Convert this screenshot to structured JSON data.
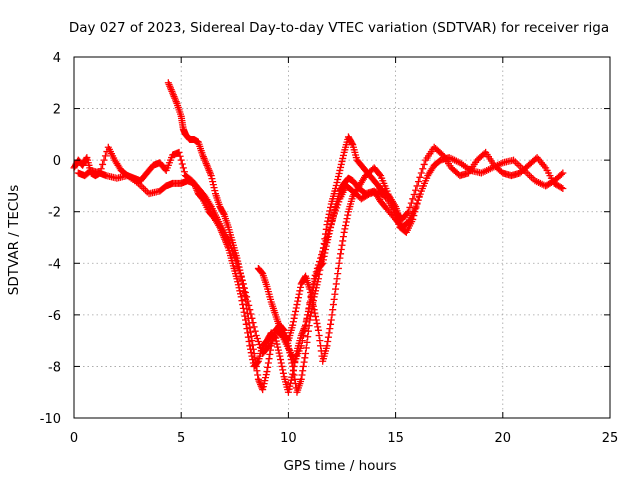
{
  "chart_data": {
    "type": "scatter",
    "title": "Day 027 of 2023, Sidereal Day-to-day VTEC variation (SDTVAR) for receiver riga",
    "xlabel": "GPS time / hours",
    "ylabel": "SDTVAR / TECUs",
    "xlim": [
      0,
      25
    ],
    "ylim": [
      -10,
      4
    ],
    "xticks": [
      "0",
      "5",
      "10",
      "15",
      "20",
      "25"
    ],
    "yticks": [
      "-10",
      "-8",
      "-6",
      "-4",
      "-2",
      "0",
      "2",
      "4"
    ],
    "grid": true,
    "marker": "plus",
    "color": "#ff0000",
    "series": [
      {
        "points": [
          [
            0.0,
            -0.3
          ],
          [
            0.2,
            0.0
          ],
          [
            0.4,
            -0.2
          ],
          [
            0.6,
            0.1
          ],
          [
            0.8,
            -0.5
          ],
          [
            1.0,
            -0.6
          ],
          [
            1.2,
            -0.5
          ],
          [
            1.5,
            -0.6
          ],
          [
            2.0,
            -0.7
          ],
          [
            2.5,
            -0.6
          ],
          [
            3.0,
            -0.9
          ],
          [
            3.5,
            -1.3
          ],
          [
            4.0,
            -1.2
          ],
          [
            4.3,
            -1.0
          ],
          [
            4.6,
            -0.9
          ],
          [
            5.0,
            -0.9
          ],
          [
            5.3,
            -0.8
          ],
          [
            5.6,
            -0.9
          ],
          [
            5.8,
            -1.3
          ],
          [
            6.0,
            -1.5
          ],
          [
            6.3,
            -2.0
          ],
          [
            6.5,
            -2.2
          ],
          [
            6.8,
            -2.6
          ],
          [
            7.0,
            -3.0
          ],
          [
            7.2,
            -3.4
          ],
          [
            7.4,
            -4.0
          ],
          [
            7.6,
            -4.6
          ],
          [
            7.8,
            -5.3
          ],
          [
            8.0,
            -6.2
          ],
          [
            8.2,
            -7.2
          ],
          [
            8.4,
            -8.0
          ],
          [
            8.6,
            -7.8
          ],
          [
            8.8,
            -7.2
          ],
          [
            9.0,
            -7.0
          ],
          [
            9.2,
            -6.7
          ],
          [
            9.4,
            -6.9
          ],
          [
            9.6,
            -7.6
          ],
          [
            9.8,
            -8.4
          ],
          [
            10.0,
            -9.0
          ],
          [
            10.2,
            -8.3
          ],
          [
            10.4,
            -7.4
          ],
          [
            10.6,
            -6.8
          ],
          [
            10.8,
            -6.4
          ],
          [
            11.0,
            -5.6
          ],
          [
            11.2,
            -4.8
          ],
          [
            11.4,
            -4.2
          ],
          [
            11.6,
            -4.0
          ],
          [
            11.8,
            -3.2
          ],
          [
            12.0,
            -2.5
          ],
          [
            12.2,
            -1.8
          ],
          [
            12.4,
            -1.2
          ],
          [
            12.6,
            -0.9
          ],
          [
            12.8,
            -0.7
          ],
          [
            13.0,
            -0.8
          ],
          [
            13.3,
            -1.1
          ],
          [
            13.6,
            -1.3
          ],
          [
            14.0,
            -1.2
          ],
          [
            14.3,
            -1.6
          ],
          [
            14.6,
            -1.9
          ],
          [
            15.0,
            -2.3
          ],
          [
            15.3,
            -2.6
          ],
          [
            15.6,
            -2.4
          ],
          [
            15.9,
            -1.9
          ],
          [
            16.2,
            -1.2
          ],
          [
            16.5,
            -0.6
          ],
          [
            16.8,
            -0.2
          ],
          [
            17.1,
            0.0
          ],
          [
            17.5,
            0.1
          ],
          [
            18.0,
            -0.1
          ],
          [
            18.5,
            -0.4
          ],
          [
            19.0,
            -0.5
          ],
          [
            19.5,
            -0.3
          ],
          [
            20.0,
            -0.1
          ],
          [
            20.5,
            0.0
          ],
          [
            21.0,
            -0.4
          ],
          [
            21.5,
            -0.8
          ],
          [
            22.0,
            -1.0
          ],
          [
            22.4,
            -0.8
          ],
          [
            22.8,
            -0.5
          ]
        ]
      },
      {
        "points": [
          [
            0.2,
            -0.5
          ],
          [
            0.5,
            -0.6
          ],
          [
            0.8,
            -0.4
          ],
          [
            1.2,
            -0.5
          ],
          [
            1.6,
            0.5
          ],
          [
            1.9,
            0.0
          ],
          [
            2.2,
            -0.4
          ],
          [
            2.5,
            -0.6
          ],
          [
            2.8,
            -0.7
          ],
          [
            3.1,
            -0.8
          ],
          [
            3.4,
            -0.5
          ],
          [
            3.7,
            -0.2
          ],
          [
            4.0,
            -0.1
          ],
          [
            4.3,
            -0.4
          ],
          [
            4.6,
            0.2
          ],
          [
            4.9,
            0.3
          ],
          [
            5.2,
            -0.6
          ],
          [
            5.5,
            -0.8
          ],
          [
            5.8,
            -1.1
          ],
          [
            6.1,
            -1.4
          ],
          [
            6.4,
            -1.8
          ],
          [
            6.7,
            -2.3
          ],
          [
            7.0,
            -2.8
          ],
          [
            7.3,
            -3.3
          ],
          [
            7.6,
            -4.0
          ],
          [
            7.9,
            -4.8
          ],
          [
            8.2,
            -5.8
          ],
          [
            8.5,
            -6.8
          ],
          [
            8.8,
            -7.5
          ],
          [
            9.1,
            -7.2
          ],
          [
            9.4,
            -6.6
          ],
          [
            9.7,
            -6.8
          ],
          [
            10.0,
            -7.3
          ],
          [
            10.3,
            -7.8
          ],
          [
            10.6,
            -7.2
          ],
          [
            10.9,
            -6.0
          ],
          [
            11.2,
            -4.6
          ],
          [
            11.5,
            -3.8
          ],
          [
            11.8,
            -3.0
          ],
          [
            12.1,
            -2.2
          ],
          [
            12.4,
            -1.5
          ],
          [
            12.7,
            -1.0
          ],
          [
            13.0,
            -1.2
          ],
          [
            13.4,
            -1.5
          ],
          [
            13.8,
            -1.3
          ],
          [
            14.2,
            -1.2
          ],
          [
            14.6,
            -1.5
          ],
          [
            15.0,
            -2.0
          ],
          [
            15.3,
            -2.3
          ],
          [
            15.6,
            -2.0
          ],
          [
            16.0,
            -1.0
          ],
          [
            16.4,
            0.0
          ],
          [
            16.8,
            0.5
          ],
          [
            17.2,
            0.2
          ],
          [
            17.6,
            -0.3
          ],
          [
            18.0,
            -0.6
          ],
          [
            18.4,
            -0.5
          ],
          [
            18.8,
            0.0
          ],
          [
            19.2,
            0.3
          ],
          [
            19.6,
            -0.2
          ],
          [
            20.0,
            -0.5
          ],
          [
            20.4,
            -0.6
          ],
          [
            20.8,
            -0.5
          ],
          [
            21.2,
            -0.2
          ],
          [
            21.6,
            0.1
          ],
          [
            22.0,
            -0.3
          ],
          [
            22.4,
            -0.9
          ],
          [
            22.8,
            -1.1
          ]
        ]
      },
      {
        "points": [
          [
            4.4,
            3.0
          ],
          [
            4.6,
            2.6
          ],
          [
            4.8,
            2.2
          ],
          [
            5.0,
            1.7
          ],
          [
            5.1,
            1.2
          ],
          [
            5.2,
            1.0
          ],
          [
            5.4,
            0.8
          ],
          [
            5.6,
            0.8
          ],
          [
            5.8,
            0.7
          ],
          [
            6.0,
            0.2
          ],
          [
            6.2,
            -0.2
          ],
          [
            6.4,
            -0.6
          ],
          [
            6.6,
            -1.3
          ],
          [
            6.8,
            -1.8
          ],
          [
            7.0,
            -2.1
          ],
          [
            7.2,
            -2.6
          ],
          [
            7.4,
            -3.2
          ],
          [
            7.6,
            -3.8
          ],
          [
            7.8,
            -4.5
          ],
          [
            8.0,
            -5.4
          ],
          [
            8.2,
            -6.5
          ],
          [
            8.4,
            -7.5
          ],
          [
            8.6,
            -8.5
          ],
          [
            8.8,
            -8.9
          ],
          [
            9.0,
            -8.2
          ],
          [
            9.2,
            -7.2
          ],
          [
            9.4,
            -6.6
          ],
          [
            9.6,
            -6.4
          ],
          [
            9.8,
            -6.6
          ],
          [
            10.0,
            -7.2
          ],
          [
            10.2,
            -8.0
          ],
          [
            10.4,
            -9.0
          ],
          [
            10.6,
            -8.5
          ],
          [
            10.8,
            -7.5
          ],
          [
            11.0,
            -6.2
          ],
          [
            11.2,
            -5.3
          ],
          [
            11.4,
            -4.6
          ],
          [
            11.6,
            -3.6
          ],
          [
            11.8,
            -2.5
          ],
          [
            12.0,
            -1.7
          ],
          [
            12.2,
            -1.1
          ],
          [
            12.4,
            -0.4
          ],
          [
            12.6,
            0.3
          ],
          [
            12.8,
            0.9
          ],
          [
            13.0,
            0.6
          ],
          [
            13.2,
            0.0
          ],
          [
            13.5,
            -0.3
          ],
          [
            13.8,
            -0.6
          ],
          [
            14.1,
            -0.9
          ],
          [
            14.4,
            -1.2
          ],
          [
            14.7,
            -1.4
          ],
          [
            15.0,
            -1.8
          ],
          [
            15.2,
            -2.3
          ]
        ]
      },
      {
        "points": [
          [
            8.6,
            -4.2
          ],
          [
            8.8,
            -4.4
          ],
          [
            9.0,
            -4.9
          ],
          [
            9.2,
            -5.5
          ],
          [
            9.4,
            -6.0
          ],
          [
            9.6,
            -6.5
          ],
          [
            9.8,
            -6.8
          ],
          [
            10.0,
            -7.0
          ],
          [
            10.2,
            -6.4
          ],
          [
            10.4,
            -5.6
          ],
          [
            10.6,
            -4.8
          ],
          [
            10.8,
            -4.5
          ],
          [
            11.0,
            -5.0
          ],
          [
            11.2,
            -5.8
          ],
          [
            11.4,
            -6.6
          ],
          [
            11.6,
            -7.8
          ],
          [
            11.8,
            -7.2
          ],
          [
            12.0,
            -6.2
          ],
          [
            12.2,
            -5.0
          ],
          [
            12.4,
            -3.8
          ],
          [
            12.6,
            -2.8
          ],
          [
            12.8,
            -2.0
          ],
          [
            13.0,
            -1.4
          ],
          [
            13.3,
            -1.0
          ],
          [
            13.6,
            -0.6
          ],
          [
            14.0,
            -0.3
          ],
          [
            14.3,
            -0.6
          ],
          [
            14.6,
            -1.2
          ],
          [
            14.9,
            -1.9
          ],
          [
            15.2,
            -2.6
          ],
          [
            15.5,
            -2.8
          ],
          [
            15.8,
            -2.3
          ],
          [
            16.1,
            -1.4
          ]
        ]
      }
    ]
  }
}
